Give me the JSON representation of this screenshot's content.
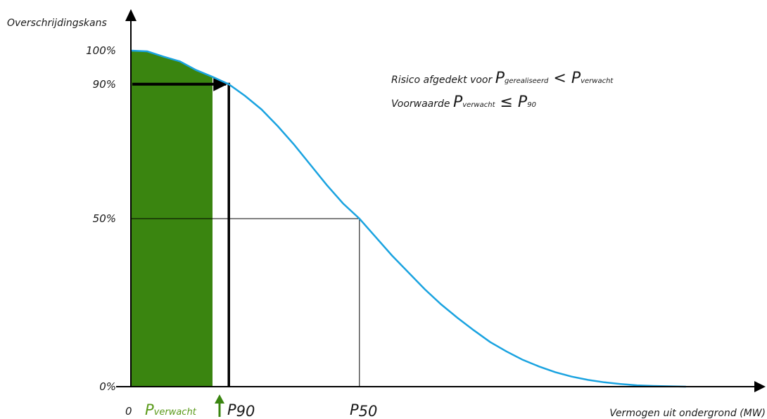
{
  "chart_data": {
    "type": "area",
    "ylabel": "Overschrijdingskans",
    "xlabel": "Vermogen uit ondergrond (MW)",
    "x_origin_label": "0",
    "y_ticks": [
      {
        "value": 100,
        "label": "100%"
      },
      {
        "value": 90,
        "label": "90%"
      },
      {
        "value": 50,
        "label": "50%"
      },
      {
        "value": 0,
        "label": "0%"
      }
    ],
    "ylim": [
      0,
      100
    ],
    "xlim": [
      0,
      4
    ],
    "x_markers": [
      {
        "name": "P",
        "sub": "verwacht",
        "x": 0.5,
        "color": "#3a8510"
      },
      {
        "name": "P",
        "sub": "90",
        "x": 0.6,
        "prob": 90
      },
      {
        "name": "P",
        "sub": "50",
        "x": 1.4,
        "prob": 50
      }
    ],
    "curve": {
      "x_end": 3.4,
      "points": [
        [
          0,
          100
        ],
        [
          0.1,
          99.8
        ],
        [
          0.2,
          98.2
        ],
        [
          0.3,
          96.8
        ],
        [
          0.4,
          94.2
        ],
        [
          0.5,
          92.2
        ],
        [
          0.6,
          90
        ],
        [
          0.7,
          86.5
        ],
        [
          0.8,
          82.5
        ],
        [
          0.9,
          77.5
        ],
        [
          1.0,
          72
        ],
        [
          1.1,
          66
        ],
        [
          1.2,
          60
        ],
        [
          1.3,
          54.5
        ],
        [
          1.4,
          50
        ],
        [
          1.5,
          44.5
        ],
        [
          1.6,
          39
        ],
        [
          1.7,
          34
        ],
        [
          1.8,
          29
        ],
        [
          1.9,
          24.5
        ],
        [
          2.0,
          20.5
        ],
        [
          2.1,
          16.8
        ],
        [
          2.2,
          13.3
        ],
        [
          2.3,
          10.5
        ],
        [
          2.4,
          8
        ],
        [
          2.5,
          6
        ],
        [
          2.6,
          4.3
        ],
        [
          2.7,
          3
        ],
        [
          2.8,
          2
        ],
        [
          2.9,
          1.3
        ],
        [
          3.0,
          0.8
        ],
        [
          3.1,
          0.4
        ],
        [
          3.2,
          0.2
        ],
        [
          3.3,
          0.1
        ],
        [
          3.4,
          0
        ]
      ]
    },
    "shaded_region": {
      "x_from": 0,
      "x_to": 0.5,
      "color": "#3a8510"
    },
    "annotations": [
      {
        "line": [
          {
            "text": "Risico afgedekt voor ",
            "kind": "text"
          },
          {
            "text": "P",
            "kind": "big"
          },
          {
            "text": "gerealiseerd",
            "kind": "sub"
          },
          {
            "text": " < ",
            "kind": "big"
          },
          {
            "text": "P",
            "kind": "big"
          },
          {
            "text": "verwacht",
            "kind": "sub"
          }
        ]
      },
      {
        "line": [
          {
            "text": "Voorwaarde ",
            "kind": "text"
          },
          {
            "text": "P",
            "kind": "big"
          },
          {
            "text": "verwacht",
            "kind": "sub"
          },
          {
            "text": " ≤ ",
            "kind": "big"
          },
          {
            "text": "P",
            "kind": "big"
          },
          {
            "text": "90",
            "kind": "sub"
          }
        ]
      }
    ],
    "colors": {
      "curve": "#1aa3e0",
      "fill": "#3a8510",
      "axis": "#000000",
      "marker_up": "#3a8510"
    },
    "grid": false
  }
}
